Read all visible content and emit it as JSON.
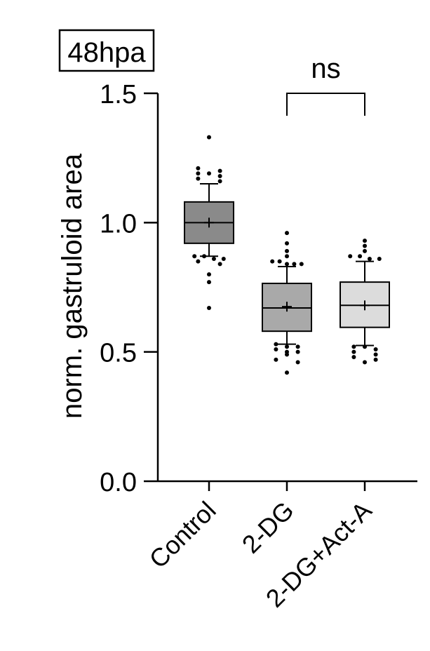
{
  "panel_label": "48hpa",
  "chart_data": {
    "type": "box",
    "title": "",
    "xlabel": "",
    "ylabel": "norm. gastruloid area",
    "ylim": [
      0,
      1.5
    ],
    "yticks": [
      0.0,
      0.5,
      1.0,
      1.5
    ],
    "ytick_labels": [
      "0.0",
      "0.5",
      "1.0",
      "1.5"
    ],
    "categories": [
      "Control",
      "2-DG",
      "2-DG+Act-A"
    ],
    "box_colors": [
      "#8a8a8a",
      "#a9a9a9",
      "#dcdcdc"
    ],
    "boxes": [
      {
        "category": "Control",
        "whisker_low": 0.87,
        "q1": 0.92,
        "median": 1.0,
        "mean": 1.0,
        "q3": 1.08,
        "whisker_high": 1.15,
        "outliers": [
          1.33,
          1.21,
          1.2,
          1.19,
          1.19,
          1.18,
          1.17,
          1.16,
          0.87,
          0.87,
          0.86,
          0.86,
          0.85,
          0.84,
          0.8,
          0.77,
          0.67
        ]
      },
      {
        "category": "2-DG",
        "whisker_low": 0.53,
        "q1": 0.58,
        "median": 0.67,
        "mean": 0.675,
        "q3": 0.765,
        "whisker_high": 0.83,
        "outliers": [
          0.96,
          0.92,
          0.89,
          0.87,
          0.85,
          0.85,
          0.84,
          0.84,
          0.84,
          0.53,
          0.52,
          0.52,
          0.51,
          0.5,
          0.5,
          0.49,
          0.47,
          0.46,
          0.42
        ]
      },
      {
        "category": "2-DG+Act-A",
        "whisker_low": 0.525,
        "q1": 0.595,
        "median": 0.68,
        "mean": 0.68,
        "q3": 0.77,
        "whisker_high": 0.85,
        "outliers": [
          0.93,
          0.91,
          0.89,
          0.87,
          0.87,
          0.86,
          0.86,
          0.52,
          0.52,
          0.51,
          0.5,
          0.49,
          0.48,
          0.47,
          0.46
        ]
      }
    ],
    "comparison": {
      "from": "2-DG",
      "to": "2-DG+Act-A",
      "label": "ns",
      "bracket_y": 1.5
    }
  }
}
